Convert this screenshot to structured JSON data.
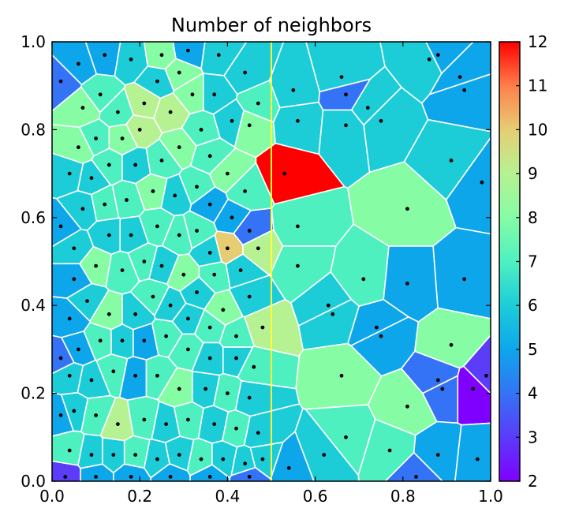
{
  "chart_data": {
    "type": "heatmap",
    "subtype": "voronoi",
    "title": "Number of neighbors",
    "xlim": [
      0.0,
      1.0
    ],
    "ylim": [
      0.0,
      1.0
    ],
    "x_ticks": [
      "0.0",
      "0.2",
      "0.4",
      "0.6",
      "0.8",
      "1.0"
    ],
    "y_ticks": [
      "0.0",
      "0.2",
      "0.4",
      "0.6",
      "0.8",
      "1.0"
    ],
    "colorbar": {
      "colormap": "rainbow",
      "range": [
        2,
        12
      ],
      "ticks": [
        "2",
        "3",
        "4",
        "5",
        "6",
        "7",
        "8",
        "9",
        "10",
        "11",
        "12"
      ]
    },
    "vertical_line": {
      "x": 0.5,
      "color": "#ffff33"
    },
    "grid": false,
    "points": [
      {
        "x": 0.06,
        "y": 0.95,
        "n": 5
      },
      {
        "x": 0.12,
        "y": 0.97,
        "n": 5
      },
      {
        "x": 0.18,
        "y": 0.96,
        "n": 6
      },
      {
        "x": 0.11,
        "y": 0.88,
        "n": 7
      },
      {
        "x": 0.07,
        "y": 0.85,
        "n": 8
      },
      {
        "x": 0.15,
        "y": 0.84,
        "n": 7
      },
      {
        "x": 0.21,
        "y": 0.86,
        "n": 9
      },
      {
        "x": 0.27,
        "y": 0.84,
        "n": 9
      },
      {
        "x": 0.2,
        "y": 0.8,
        "n": 9
      },
      {
        "x": 0.16,
        "y": 0.78,
        "n": 8
      },
      {
        "x": 0.1,
        "y": 0.78,
        "n": 7
      },
      {
        "x": 0.06,
        "y": 0.76,
        "n": 8
      },
      {
        "x": 0.24,
        "y": 0.91,
        "n": 6
      },
      {
        "x": 0.29,
        "y": 0.93,
        "n": 8
      },
      {
        "x": 0.32,
        "y": 0.88,
        "n": 8
      },
      {
        "x": 0.34,
        "y": 0.8,
        "n": 7
      },
      {
        "x": 0.29,
        "y": 0.76,
        "n": 8
      },
      {
        "x": 0.25,
        "y": 0.73,
        "n": 7
      },
      {
        "x": 0.19,
        "y": 0.72,
        "n": 6
      },
      {
        "x": 0.13,
        "y": 0.72,
        "n": 7
      },
      {
        "x": 0.09,
        "y": 0.69,
        "n": 6
      },
      {
        "x": 0.04,
        "y": 0.7,
        "n": 6
      },
      {
        "x": 0.37,
        "y": 0.88,
        "n": 6
      },
      {
        "x": 0.41,
        "y": 0.82,
        "n": 6
      },
      {
        "x": 0.36,
        "y": 0.74,
        "n": 7
      },
      {
        "x": 0.4,
        "y": 0.7,
        "n": 8
      },
      {
        "x": 0.44,
        "y": 0.66,
        "n": 7
      },
      {
        "x": 0.45,
        "y": 0.81,
        "n": 8
      },
      {
        "x": 0.47,
        "y": 0.86,
        "n": 7
      },
      {
        "x": 0.44,
        "y": 0.93,
        "n": 6
      },
      {
        "x": 0.38,
        "y": 0.97,
        "n": 6
      },
      {
        "x": 0.31,
        "y": 0.98,
        "n": 5
      },
      {
        "x": 0.25,
        "y": 0.97,
        "n": 8
      },
      {
        "x": 0.33,
        "y": 0.67,
        "n": 7
      },
      {
        "x": 0.28,
        "y": 0.65,
        "n": 6
      },
      {
        "x": 0.23,
        "y": 0.66,
        "n": 8
      },
      {
        "x": 0.17,
        "y": 0.64,
        "n": 7
      },
      {
        "x": 0.12,
        "y": 0.63,
        "n": 7
      },
      {
        "x": 0.07,
        "y": 0.62,
        "n": 6
      },
      {
        "x": 0.36,
        "y": 0.63,
        "n": 5
      },
      {
        "x": 0.41,
        "y": 0.6,
        "n": 5
      },
      {
        "x": 0.45,
        "y": 0.57,
        "n": 4
      },
      {
        "x": 0.4,
        "y": 0.53,
        "n": 10
      },
      {
        "x": 0.47,
        "y": 0.53,
        "n": 9
      },
      {
        "x": 0.43,
        "y": 0.48,
        "n": 6
      },
      {
        "x": 0.37,
        "y": 0.47,
        "n": 7
      },
      {
        "x": 0.36,
        "y": 0.52,
        "n": 6
      },
      {
        "x": 0.33,
        "y": 0.57,
        "n": 7
      },
      {
        "x": 0.29,
        "y": 0.56,
        "n": 7
      },
      {
        "x": 0.24,
        "y": 0.58,
        "n": 7
      },
      {
        "x": 0.18,
        "y": 0.56,
        "n": 6
      },
      {
        "x": 0.13,
        "y": 0.56,
        "n": 6
      },
      {
        "x": 0.1,
        "y": 0.49,
        "n": 8
      },
      {
        "x": 0.05,
        "y": 0.53,
        "n": 6
      },
      {
        "x": 0.05,
        "y": 0.46,
        "n": 5
      },
      {
        "x": 0.16,
        "y": 0.48,
        "n": 7
      },
      {
        "x": 0.21,
        "y": 0.5,
        "n": 7
      },
      {
        "x": 0.25,
        "y": 0.49,
        "n": 6
      },
      {
        "x": 0.3,
        "y": 0.47,
        "n": 8
      },
      {
        "x": 0.33,
        "y": 0.43,
        "n": 6
      },
      {
        "x": 0.39,
        "y": 0.39,
        "n": 8
      },
      {
        "x": 0.45,
        "y": 0.42,
        "n": 6
      },
      {
        "x": 0.48,
        "y": 0.35,
        "n": 9
      },
      {
        "x": 0.42,
        "y": 0.33,
        "n": 7
      },
      {
        "x": 0.36,
        "y": 0.35,
        "n": 7
      },
      {
        "x": 0.31,
        "y": 0.37,
        "n": 6
      },
      {
        "x": 0.27,
        "y": 0.4,
        "n": 6
      },
      {
        "x": 0.23,
        "y": 0.42,
        "n": 7
      },
      {
        "x": 0.19,
        "y": 0.38,
        "n": 6
      },
      {
        "x": 0.13,
        "y": 0.38,
        "n": 8
      },
      {
        "x": 0.08,
        "y": 0.41,
        "n": 6
      },
      {
        "x": 0.04,
        "y": 0.37,
        "n": 5
      },
      {
        "x": 0.06,
        "y": 0.3,
        "n": 5
      },
      {
        "x": 0.11,
        "y": 0.32,
        "n": 7
      },
      {
        "x": 0.16,
        "y": 0.32,
        "n": 6
      },
      {
        "x": 0.21,
        "y": 0.32,
        "n": 5
      },
      {
        "x": 0.26,
        "y": 0.33,
        "n": 7
      },
      {
        "x": 0.31,
        "y": 0.3,
        "n": 7
      },
      {
        "x": 0.36,
        "y": 0.28,
        "n": 6
      },
      {
        "x": 0.42,
        "y": 0.28,
        "n": 6
      },
      {
        "x": 0.46,
        "y": 0.26,
        "n": 7
      },
      {
        "x": 0.04,
        "y": 0.24,
        "n": 6
      },
      {
        "x": 0.09,
        "y": 0.23,
        "n": 6
      },
      {
        "x": 0.14,
        "y": 0.25,
        "n": 7
      },
      {
        "x": 0.19,
        "y": 0.24,
        "n": 5
      },
      {
        "x": 0.24,
        "y": 0.24,
        "n": 7
      },
      {
        "x": 0.29,
        "y": 0.21,
        "n": 8
      },
      {
        "x": 0.35,
        "y": 0.21,
        "n": 6
      },
      {
        "x": 0.4,
        "y": 0.2,
        "n": 7
      },
      {
        "x": 0.45,
        "y": 0.19,
        "n": 6
      },
      {
        "x": 0.05,
        "y": 0.16,
        "n": 6
      },
      {
        "x": 0.1,
        "y": 0.15,
        "n": 7
      },
      {
        "x": 0.15,
        "y": 0.13,
        "n": 9
      },
      {
        "x": 0.21,
        "y": 0.14,
        "n": 7
      },
      {
        "x": 0.26,
        "y": 0.13,
        "n": 6
      },
      {
        "x": 0.31,
        "y": 0.14,
        "n": 7
      },
      {
        "x": 0.37,
        "y": 0.13,
        "n": 6
      },
      {
        "x": 0.42,
        "y": 0.12,
        "n": 7
      },
      {
        "x": 0.47,
        "y": 0.11,
        "n": 6
      },
      {
        "x": 0.04,
        "y": 0.07,
        "n": 7
      },
      {
        "x": 0.09,
        "y": 0.06,
        "n": 6
      },
      {
        "x": 0.14,
        "y": 0.06,
        "n": 6
      },
      {
        "x": 0.19,
        "y": 0.06,
        "n": 7
      },
      {
        "x": 0.24,
        "y": 0.05,
        "n": 6
      },
      {
        "x": 0.29,
        "y": 0.06,
        "n": 6
      },
      {
        "x": 0.34,
        "y": 0.05,
        "n": 7
      },
      {
        "x": 0.39,
        "y": 0.05,
        "n": 6
      },
      {
        "x": 0.44,
        "y": 0.04,
        "n": 6
      },
      {
        "x": 0.48,
        "y": 0.05,
        "n": 6
      },
      {
        "x": 0.03,
        "y": 0.01,
        "n": 3
      },
      {
        "x": 0.1,
        "y": 0.01,
        "n": 5
      },
      {
        "x": 0.18,
        "y": 0.01,
        "n": 5
      },
      {
        "x": 0.27,
        "y": 0.01,
        "n": 5
      },
      {
        "x": 0.36,
        "y": 0.01,
        "n": 5
      },
      {
        "x": 0.45,
        "y": 0.01,
        "n": 4
      },
      {
        "x": 0.02,
        "y": 0.91,
        "n": 4
      },
      {
        "x": 0.02,
        "y": 0.58,
        "n": 5
      },
      {
        "x": 0.02,
        "y": 0.28,
        "n": 4
      },
      {
        "x": 0.02,
        "y": 0.15,
        "n": 5
      },
      {
        "x": 0.55,
        "y": 0.89,
        "n": 6
      },
      {
        "x": 0.56,
        "y": 0.82,
        "n": 6
      },
      {
        "x": 0.53,
        "y": 0.7,
        "n": 12
      },
      {
        "x": 0.66,
        "y": 0.92,
        "n": 6
      },
      {
        "x": 0.67,
        "y": 0.81,
        "n": 6
      },
      {
        "x": 0.72,
        "y": 0.85,
        "n": 6
      },
      {
        "x": 0.75,
        "y": 0.82,
        "n": 6
      },
      {
        "x": 0.67,
        "y": 0.88,
        "n": 4
      },
      {
        "x": 0.86,
        "y": 0.96,
        "n": 6
      },
      {
        "x": 0.94,
        "y": 0.89,
        "n": 5
      },
      {
        "x": 0.91,
        "y": 0.73,
        "n": 6
      },
      {
        "x": 0.98,
        "y": 0.68,
        "n": 5
      },
      {
        "x": 0.93,
        "y": 0.92,
        "n": 5
      },
      {
        "x": 0.88,
        "y": 0.97,
        "n": 5
      },
      {
        "x": 0.56,
        "y": 0.58,
        "n": 7
      },
      {
        "x": 0.56,
        "y": 0.49,
        "n": 7
      },
      {
        "x": 0.71,
        "y": 0.46,
        "n": 7
      },
      {
        "x": 0.81,
        "y": 0.62,
        "n": 8
      },
      {
        "x": 0.81,
        "y": 0.45,
        "n": 5
      },
      {
        "x": 0.94,
        "y": 0.46,
        "n": 5
      },
      {
        "x": 0.63,
        "y": 0.4,
        "n": 6
      },
      {
        "x": 0.64,
        "y": 0.38,
        "n": 6
      },
      {
        "x": 0.74,
        "y": 0.35,
        "n": 5
      },
      {
        "x": 0.75,
        "y": 0.33,
        "n": 5
      },
      {
        "x": 0.91,
        "y": 0.31,
        "n": 8
      },
      {
        "x": 0.66,
        "y": 0.24,
        "n": 8
      },
      {
        "x": 0.81,
        "y": 0.17,
        "n": 8
      },
      {
        "x": 0.88,
        "y": 0.23,
        "n": 4
      },
      {
        "x": 0.89,
        "y": 0.21,
        "n": 4
      },
      {
        "x": 0.96,
        "y": 0.21,
        "n": 2
      },
      {
        "x": 0.54,
        "y": 0.03,
        "n": 5
      },
      {
        "x": 0.67,
        "y": 0.1,
        "n": 7
      },
      {
        "x": 0.77,
        "y": 0.07,
        "n": 7
      },
      {
        "x": 0.88,
        "y": 0.06,
        "n": 5
      },
      {
        "x": 0.83,
        "y": 0.01,
        "n": 4
      },
      {
        "x": 0.97,
        "y": 0.05,
        "n": 5
      },
      {
        "x": 0.62,
        "y": 0.06,
        "n": 6
      },
      {
        "x": 0.99,
        "y": 0.24,
        "n": 3
      }
    ]
  }
}
